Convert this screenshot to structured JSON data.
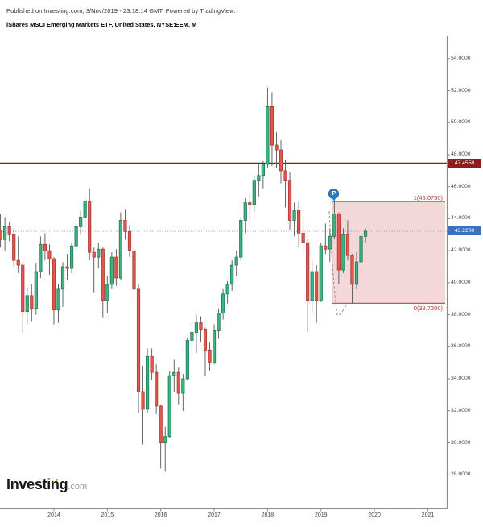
{
  "header": {
    "published": "Published on Investing.com, 3/Nov/2019 - 23:18:14 GMT, Powered by TradingView.",
    "instrument": "iShares MSCI Emerging Markets ETF, United States, NYSE:EEM, M"
  },
  "watermark": {
    "main": "Investing",
    "suffix": ".com"
  },
  "chart_data": {
    "type": "candlestick",
    "title": "iShares MSCI Emerging Markets ETF, United States, NYSE:EEM, M",
    "symbol": "NYSE:EEM",
    "interval": "M",
    "ylim": [
      25.9,
      55.4
    ],
    "grid": false,
    "y_tick_labels": [
      "54.0000",
      "52.0000",
      "50.0000",
      "48.0000",
      "46.0000",
      "44.0000",
      "42.0000",
      "40.0000",
      "38.0000",
      "36.0000",
      "34.0000",
      "32.0000",
      "30.0000",
      "28.0000"
    ],
    "x_tick_labels": [
      "2014",
      "2015",
      "2016",
      "2017",
      "2018",
      "2019",
      "2020",
      "2021"
    ],
    "start_year": 2013,
    "levels": [
      {
        "name": "horizontal-resistance-line",
        "price": 47.455,
        "label": "47.4550",
        "line_color": "#7d1f1f",
        "badge_color": "#8e1d1d",
        "style": "solid",
        "width": 2.2
      },
      {
        "name": "last-price-line",
        "price": 43.22,
        "label": "43.2200",
        "line_color": "#85a9de",
        "badge_color": "#3a72c0",
        "style": "dotted",
        "width": 1
      }
    ],
    "fib_zone": {
      "top_price": 45.075,
      "bottom_price": 38.72,
      "top_label": "1(45.0750)",
      "bottom_label": "0(38.7200)",
      "start_t": "2019-04",
      "fill": "#e9b0b4",
      "fill_opacity": 0.5,
      "edge_color": "#c0585e",
      "label_color": "#b03a3a"
    },
    "pattern_marker": {
      "label": "P",
      "t": "2019-04",
      "color": "#2d7dcb"
    },
    "colors": {
      "up_fill": "#3cb381",
      "up_border": "#1f7a55",
      "down_fill": "#e2564f",
      "down_border": "#a93a34",
      "wick": "#555555",
      "axis_line": "#8c8c8c",
      "axis_text": "#444444"
    },
    "candles": [
      {
        "t": "2013-01",
        "o": 43.3,
        "h": 44.3,
        "l": 42.2,
        "c": 42.7
      },
      {
        "t": "2013-02",
        "o": 42.7,
        "h": 44.1,
        "l": 42.0,
        "c": 43.5
      },
      {
        "t": "2013-03",
        "o": 43.5,
        "h": 43.8,
        "l": 42.6,
        "c": 43.0
      },
      {
        "t": "2013-04",
        "o": 43.0,
        "h": 43.4,
        "l": 41.0,
        "c": 41.4
      },
      {
        "t": "2013-05",
        "o": 41.4,
        "h": 42.9,
        "l": 40.6,
        "c": 41.1
      },
      {
        "t": "2013-06",
        "o": 41.1,
        "h": 41.3,
        "l": 36.9,
        "c": 38.2
      },
      {
        "t": "2013-07",
        "o": 38.2,
        "h": 39.7,
        "l": 37.4,
        "c": 39.2
      },
      {
        "t": "2013-08",
        "o": 39.2,
        "h": 39.9,
        "l": 37.6,
        "c": 38.4
      },
      {
        "t": "2013-09",
        "o": 38.4,
        "h": 41.2,
        "l": 38.0,
        "c": 40.7
      },
      {
        "t": "2013-10",
        "o": 40.7,
        "h": 42.9,
        "l": 40.3,
        "c": 42.4
      },
      {
        "t": "2013-11",
        "o": 42.4,
        "h": 43.1,
        "l": 41.4,
        "c": 42.0
      },
      {
        "t": "2013-12",
        "o": 42.0,
        "h": 42.4,
        "l": 40.5,
        "c": 41.5
      },
      {
        "t": "2014-01",
        "o": 41.5,
        "h": 41.6,
        "l": 37.4,
        "c": 38.3
      },
      {
        "t": "2014-02",
        "o": 38.3,
        "h": 39.9,
        "l": 37.5,
        "c": 39.6
      },
      {
        "t": "2014-03",
        "o": 39.6,
        "h": 41.3,
        "l": 38.5,
        "c": 41.0
      },
      {
        "t": "2014-04",
        "o": 41.0,
        "h": 41.8,
        "l": 40.2,
        "c": 40.9
      },
      {
        "t": "2014-05",
        "o": 40.9,
        "h": 42.5,
        "l": 40.6,
        "c": 42.3
      },
      {
        "t": "2014-06",
        "o": 42.3,
        "h": 43.7,
        "l": 42.0,
        "c": 43.5
      },
      {
        "t": "2014-07",
        "o": 43.5,
        "h": 44.5,
        "l": 43.0,
        "c": 44.1
      },
      {
        "t": "2014-08",
        "o": 44.1,
        "h": 45.4,
        "l": 43.4,
        "c": 45.1
      },
      {
        "t": "2014-09",
        "o": 45.1,
        "h": 45.9,
        "l": 41.4,
        "c": 41.9
      },
      {
        "t": "2014-10",
        "o": 41.9,
        "h": 42.2,
        "l": 39.4,
        "c": 41.6
      },
      {
        "t": "2014-11",
        "o": 41.6,
        "h": 42.5,
        "l": 40.9,
        "c": 42.1
      },
      {
        "t": "2014-12",
        "o": 42.1,
        "h": 42.2,
        "l": 37.8,
        "c": 38.9
      },
      {
        "t": "2015-01",
        "o": 38.9,
        "h": 40.4,
        "l": 38.1,
        "c": 39.9
      },
      {
        "t": "2015-02",
        "o": 39.9,
        "h": 41.9,
        "l": 39.6,
        "c": 41.6
      },
      {
        "t": "2015-03",
        "o": 41.6,
        "h": 42.1,
        "l": 39.8,
        "c": 40.3
      },
      {
        "t": "2015-04",
        "o": 40.3,
        "h": 44.4,
        "l": 40.2,
        "c": 43.9
      },
      {
        "t": "2015-05",
        "o": 43.9,
        "h": 44.6,
        "l": 42.7,
        "c": 43.2
      },
      {
        "t": "2015-06",
        "o": 43.2,
        "h": 43.6,
        "l": 41.6,
        "c": 42.0
      },
      {
        "t": "2015-07",
        "o": 42.0,
        "h": 42.4,
        "l": 39.0,
        "c": 39.6
      },
      {
        "t": "2015-08",
        "o": 39.6,
        "h": 39.9,
        "l": 31.9,
        "c": 33.2
      },
      {
        "t": "2015-09",
        "o": 33.2,
        "h": 34.8,
        "l": 29.9,
        "c": 32.1
      },
      {
        "t": "2015-10",
        "o": 32.1,
        "h": 35.9,
        "l": 31.9,
        "c": 35.4
      },
      {
        "t": "2015-11",
        "o": 35.4,
        "h": 35.9,
        "l": 33.9,
        "c": 34.4
      },
      {
        "t": "2015-12",
        "o": 34.4,
        "h": 34.9,
        "l": 31.8,
        "c": 32.3
      },
      {
        "t": "2016-01",
        "o": 32.3,
        "h": 32.4,
        "l": 28.4,
        "c": 30.0
      },
      {
        "t": "2016-02",
        "o": 30.0,
        "h": 31.0,
        "l": 28.2,
        "c": 30.4
      },
      {
        "t": "2016-03",
        "o": 30.4,
        "h": 34.5,
        "l": 30.3,
        "c": 34.2
      },
      {
        "t": "2016-04",
        "o": 34.2,
        "h": 35.2,
        "l": 33.2,
        "c": 34.4
      },
      {
        "t": "2016-05",
        "o": 34.4,
        "h": 34.7,
        "l": 32.4,
        "c": 33.1
      },
      {
        "t": "2016-06",
        "o": 33.1,
        "h": 34.3,
        "l": 32.0,
        "c": 34.0
      },
      {
        "t": "2016-07",
        "o": 34.0,
        "h": 36.6,
        "l": 33.9,
        "c": 36.4
      },
      {
        "t": "2016-08",
        "o": 36.4,
        "h": 37.5,
        "l": 35.9,
        "c": 36.9
      },
      {
        "t": "2016-09",
        "o": 36.9,
        "h": 38.0,
        "l": 35.6,
        "c": 37.5
      },
      {
        "t": "2016-10",
        "o": 37.5,
        "h": 37.9,
        "l": 36.3,
        "c": 37.1
      },
      {
        "t": "2016-11",
        "o": 37.1,
        "h": 37.2,
        "l": 34.2,
        "c": 35.8
      },
      {
        "t": "2016-12",
        "o": 35.8,
        "h": 36.3,
        "l": 34.5,
        "c": 35.0
      },
      {
        "t": "2017-01",
        "o": 35.0,
        "h": 37.4,
        "l": 34.9,
        "c": 37.0
      },
      {
        "t": "2017-02",
        "o": 37.0,
        "h": 38.4,
        "l": 36.5,
        "c": 38.1
      },
      {
        "t": "2017-03",
        "o": 38.1,
        "h": 39.6,
        "l": 37.7,
        "c": 39.3
      },
      {
        "t": "2017-04",
        "o": 39.3,
        "h": 40.1,
        "l": 38.7,
        "c": 39.9
      },
      {
        "t": "2017-05",
        "o": 39.9,
        "h": 41.4,
        "l": 39.5,
        "c": 41.1
      },
      {
        "t": "2017-06",
        "o": 41.1,
        "h": 42.0,
        "l": 40.4,
        "c": 41.6
      },
      {
        "t": "2017-07",
        "o": 41.6,
        "h": 44.1,
        "l": 41.4,
        "c": 43.9
      },
      {
        "t": "2017-08",
        "o": 43.9,
        "h": 45.3,
        "l": 43.1,
        "c": 45.0
      },
      {
        "t": "2017-09",
        "o": 45.0,
        "h": 45.5,
        "l": 43.9,
        "c": 44.9
      },
      {
        "t": "2017-10",
        "o": 44.9,
        "h": 46.7,
        "l": 44.4,
        "c": 46.4
      },
      {
        "t": "2017-11",
        "o": 46.4,
        "h": 47.4,
        "l": 45.4,
        "c": 46.7
      },
      {
        "t": "2017-12",
        "o": 46.7,
        "h": 47.6,
        "l": 45.9,
        "c": 47.4
      },
      {
        "t": "2018-01",
        "o": 47.4,
        "h": 52.2,
        "l": 47.2,
        "c": 51.0
      },
      {
        "t": "2018-02",
        "o": 51.0,
        "h": 51.9,
        "l": 47.3,
        "c": 48.6
      },
      {
        "t": "2018-03",
        "o": 48.6,
        "h": 49.4,
        "l": 47.2,
        "c": 48.3
      },
      {
        "t": "2018-04",
        "o": 48.3,
        "h": 48.9,
        "l": 46.2,
        "c": 47.0
      },
      {
        "t": "2018-05",
        "o": 47.0,
        "h": 47.7,
        "l": 44.7,
        "c": 46.4
      },
      {
        "t": "2018-06",
        "o": 46.4,
        "h": 46.9,
        "l": 43.3,
        "c": 43.9
      },
      {
        "t": "2018-07",
        "o": 43.9,
        "h": 45.0,
        "l": 42.9,
        "c": 44.5
      },
      {
        "t": "2018-08",
        "o": 44.5,
        "h": 45.1,
        "l": 42.2,
        "c": 43.1
      },
      {
        "t": "2018-09",
        "o": 43.1,
        "h": 44.0,
        "l": 41.8,
        "c": 42.5
      },
      {
        "t": "2018-10",
        "o": 42.5,
        "h": 42.7,
        "l": 36.9,
        "c": 38.9
      },
      {
        "t": "2018-11",
        "o": 38.9,
        "h": 41.4,
        "l": 38.1,
        "c": 40.7
      },
      {
        "t": "2018-12",
        "o": 40.7,
        "h": 41.1,
        "l": 37.5,
        "c": 38.9
      },
      {
        "t": "2019-01",
        "o": 38.9,
        "h": 42.5,
        "l": 38.8,
        "c": 42.3
      },
      {
        "t": "2019-02",
        "o": 42.3,
        "h": 43.7,
        "l": 41.8,
        "c": 42.1
      },
      {
        "t": "2019-03",
        "o": 42.1,
        "h": 43.4,
        "l": 41.3,
        "c": 42.9
      },
      {
        "t": "2019-04",
        "o": 42.9,
        "h": 45.08,
        "l": 42.7,
        "c": 44.3
      },
      {
        "t": "2019-05",
        "o": 44.3,
        "h": 44.4,
        "l": 39.9,
        "c": 40.8
      },
      {
        "t": "2019-06",
        "o": 40.8,
        "h": 43.4,
        "l": 40.6,
        "c": 43.0
      },
      {
        "t": "2019-07",
        "o": 43.0,
        "h": 43.9,
        "l": 41.4,
        "c": 41.7
      },
      {
        "t": "2019-08",
        "o": 41.7,
        "h": 41.8,
        "l": 38.72,
        "c": 39.9
      },
      {
        "t": "2019-09",
        "o": 39.9,
        "h": 41.9,
        "l": 39.6,
        "c": 41.3
      },
      {
        "t": "2019-10",
        "o": 41.3,
        "h": 43.0,
        "l": 40.2,
        "c": 42.9
      },
      {
        "t": "2019-11",
        "o": 42.9,
        "h": 43.4,
        "l": 42.5,
        "c": 43.22
      }
    ]
  }
}
